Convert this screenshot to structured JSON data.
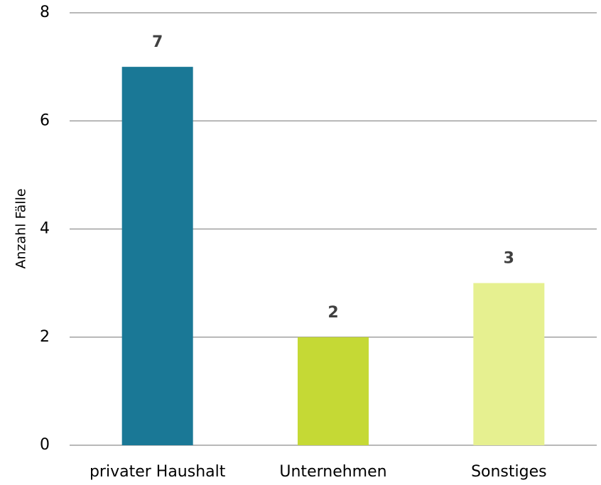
{
  "chart_data": {
    "type": "bar",
    "categories": [
      "privater Haushalt",
      "Unternehmen",
      "Sonstiges"
    ],
    "values": [
      7,
      2,
      3
    ],
    "colors": [
      "#1a7896",
      "#c5d935",
      "#e6f090"
    ],
    "ylabel": "Anzahl Fälle",
    "ylim": [
      0,
      8
    ],
    "yticks": [
      0,
      2,
      4,
      6,
      8
    ],
    "grid": true
  }
}
